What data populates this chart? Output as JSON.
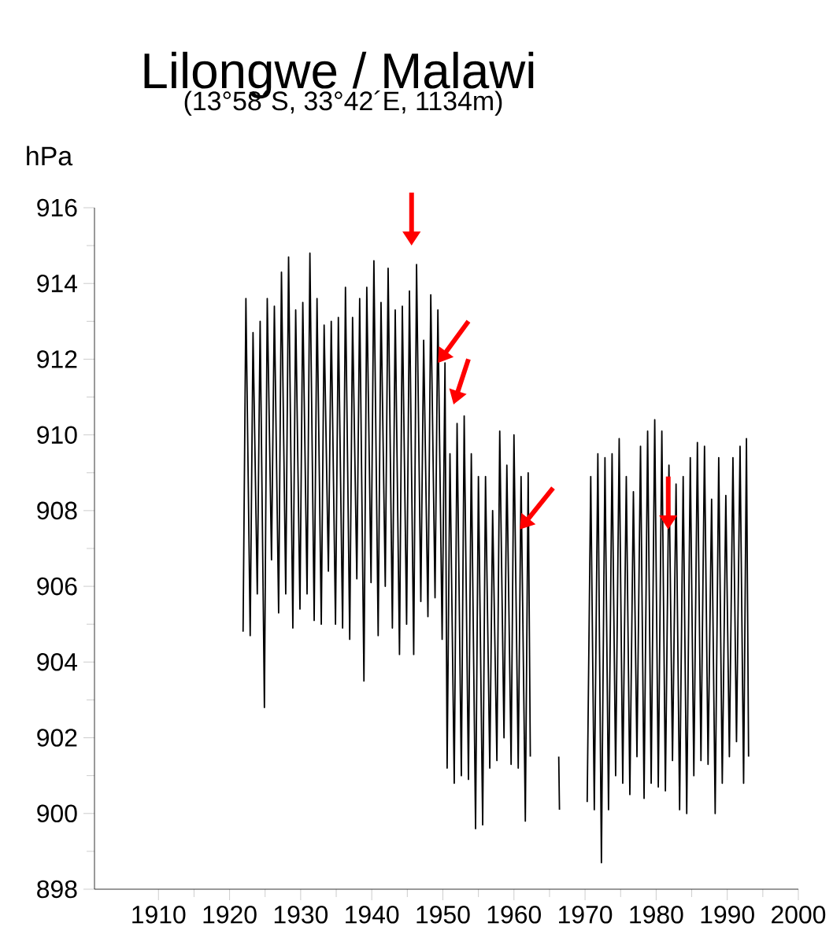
{
  "chart_data": {
    "type": "line",
    "title": "Lilongwe / Malawi",
    "subtitle": "(13°58´S, 33°42´E, 1134m)",
    "ylabel": "hPa",
    "x": [
      1921.9,
      1922.3,
      1922.9,
      1923.3,
      1923.9,
      1924.3,
      1924.9,
      1925.3,
      1925.9,
      1926.3,
      1926.9,
      1927.3,
      1927.9,
      1928.3,
      1928.9,
      1929.3,
      1929.9,
      1930.3,
      1930.9,
      1931.3,
      1931.9,
      1932.3,
      1932.9,
      1933.3,
      1933.9,
      1934.3,
      1934.9,
      1935.3,
      1935.9,
      1936.3,
      1936.9,
      1937.3,
      1937.9,
      1938.3,
      1938.9,
      1939.3,
      1939.9,
      1940.3,
      1940.9,
      1941.3,
      1941.9,
      1942.3,
      1942.9,
      1943.3,
      1943.9,
      1944.3,
      1944.9,
      1945.3,
      1945.9,
      1946.3,
      1946.9,
      1947.3,
      1947.9,
      1948.3,
      1948.9,
      1949.3,
      1949.9,
      1950.3,
      1950.6,
      1951.0,
      1951.6,
      1952.0,
      1952.6,
      1953.0,
      1953.6,
      1954.0,
      1954.6,
      1955.0,
      1955.6,
      1956.0,
      1956.6,
      1957.0,
      1957.6,
      1958.0,
      1958.6,
      1959.0,
      1959.6,
      1960.0,
      1960.6,
      1961.0,
      1961.6,
      1962.0,
      1962.3,
      1964,
      1966.3,
      1966.4,
      1968,
      1970.3,
      1970.8,
      1971.3,
      1971.8,
      1972.3,
      1972.8,
      1973.3,
      1973.8,
      1974.3,
      1974.8,
      1975.3,
      1975.8,
      1976.3,
      1976.8,
      1977.3,
      1977.8,
      1978.3,
      1978.8,
      1979.3,
      1979.8,
      1980.3,
      1980.8,
      1981.3,
      1981.8,
      1982.3,
      1982.8,
      1983.3,
      1983.8,
      1984.3,
      1984.8,
      1985.3,
      1985.8,
      1986.3,
      1986.8,
      1987.3,
      1987.8,
      1988.3,
      1988.8,
      1989.3,
      1989.8,
      1990.3,
      1990.8,
      1991.3,
      1991.8,
      1992.3,
      1992.7,
      1993.0
    ],
    "values": [
      904.8,
      913.6,
      904.7,
      912.7,
      905.8,
      913.0,
      902.8,
      913.6,
      906.7,
      913.4,
      905.3,
      914.3,
      905.8,
      914.7,
      904.9,
      913.3,
      905.4,
      913.5,
      905.8,
      914.8,
      905.1,
      913.6,
      905.0,
      912.9,
      906.4,
      913.0,
      905.0,
      913.1,
      904.9,
      913.9,
      904.6,
      913.1,
      906.2,
      913.6,
      903.5,
      913.9,
      906.1,
      914.6,
      904.7,
      913.5,
      906.0,
      914.4,
      904.9,
      913.3,
      904.2,
      913.4,
      905.0,
      913.8,
      904.2,
      914.5,
      905.6,
      912.5,
      905.2,
      913.7,
      905.7,
      913.3,
      904.6,
      911.9,
      901.2,
      909.5,
      900.8,
      910.3,
      901.0,
      910.5,
      900.9,
      909.5,
      899.6,
      908.9,
      899.7,
      908.9,
      901.2,
      908.0,
      901.4,
      910.1,
      902.0,
      909.2,
      901.3,
      910.0,
      901.2,
      908.9,
      899.8,
      909.0,
      901.5,
      null,
      901.5,
      900.1,
      null,
      900.3,
      908.9,
      900.1,
      909.5,
      898.7,
      909.4,
      900.1,
      909.5,
      901.0,
      909.9,
      900.8,
      908.9,
      900.5,
      908.5,
      901.5,
      909.7,
      900.4,
      910.1,
      900.8,
      910.4,
      900.7,
      910.1,
      900.6,
      909.2,
      901.4,
      908.7,
      900.1,
      908.9,
      900.0,
      909.4,
      901.0,
      909.8,
      901.4,
      909.7,
      901.3,
      908.3,
      900.0,
      909.4,
      900.8,
      908.4,
      901.5,
      909.4,
      901.9,
      909.7,
      900.8,
      909.9,
      901.5
    ],
    "color": "#000000",
    "marker": "none",
    "xlim": [
      1901,
      2000
    ],
    "ylim": [
      898,
      916
    ],
    "xticks": [
      1910,
      1920,
      1930,
      1940,
      1950,
      1960,
      1970,
      1980,
      1990,
      2000
    ],
    "yticks": [
      898,
      900,
      902,
      904,
      906,
      908,
      910,
      912,
      914,
      916
    ]
  }
}
